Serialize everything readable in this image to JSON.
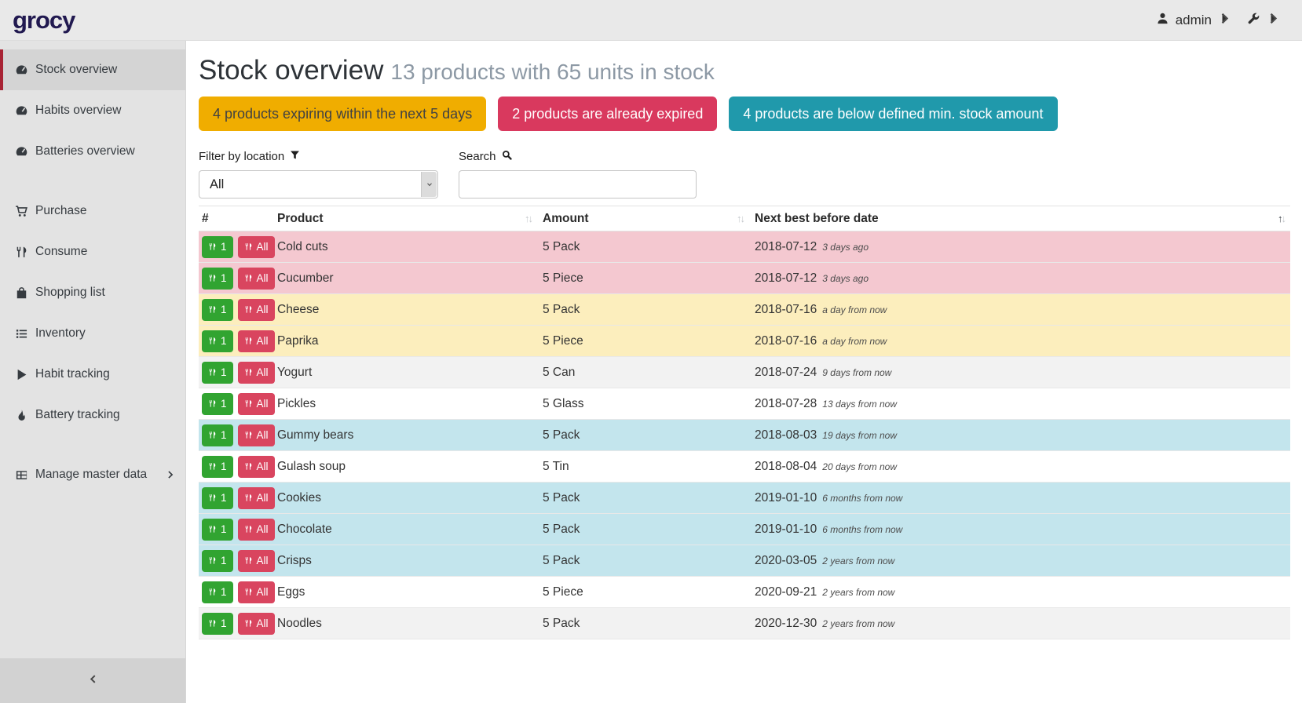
{
  "header": {
    "logo": "grocy",
    "user": "admin"
  },
  "sidebar": {
    "groups": [
      {
        "items": [
          {
            "label": "Stock overview",
            "icon": "tachometer-icon",
            "active": true
          },
          {
            "label": "Habits overview",
            "icon": "tachometer-icon"
          },
          {
            "label": "Batteries overview",
            "icon": "tachometer-icon"
          }
        ]
      },
      {
        "items": [
          {
            "label": "Purchase",
            "icon": "cart-icon"
          },
          {
            "label": "Consume",
            "icon": "utensils-icon"
          },
          {
            "label": "Shopping list",
            "icon": "shopping-bag-icon"
          },
          {
            "label": "Inventory",
            "icon": "list-icon"
          },
          {
            "label": "Habit tracking",
            "icon": "play-icon"
          },
          {
            "label": "Battery tracking",
            "icon": "fire-icon"
          }
        ]
      },
      {
        "items": [
          {
            "label": "Manage master data",
            "icon": "table-icon",
            "chevron": true
          }
        ]
      }
    ]
  },
  "page": {
    "title": "Stock overview",
    "subtitle": "13 products with 65 units in stock",
    "badges": [
      {
        "label": "4 products expiring within the next 5 days",
        "bg": "#f0ad00",
        "fg": "#424242"
      },
      {
        "label": "2 products are already expired",
        "bg": "#d9395e",
        "fg": "#ffffff"
      },
      {
        "label": "4 products are below defined min. stock amount",
        "bg": "#2099ab",
        "fg": "#ffffff"
      }
    ],
    "filter": {
      "label": "Filter by location",
      "value": "All"
    },
    "search": {
      "label": "Search",
      "value": ""
    },
    "table": {
      "columns": [
        "#",
        "Product",
        "Amount",
        "Next best before date"
      ],
      "buttons": {
        "one": "1",
        "all": "All"
      },
      "status_colors": {
        "expired": "#f4c8d0",
        "expiring": "#fceebd",
        "belowmin": "#c3e5ed"
      },
      "theme": {
        "consume_one_bg": "#31a431",
        "consume_all_bg": "#d9455f"
      },
      "rows": [
        {
          "product": "Cold cuts",
          "amount": "5 Pack",
          "date": "2018-07-12",
          "relative": "3 days ago",
          "status": "expired"
        },
        {
          "product": "Cucumber",
          "amount": "5 Piece",
          "date": "2018-07-12",
          "relative": "3 days ago",
          "status": "expired"
        },
        {
          "product": "Cheese",
          "amount": "5 Pack",
          "date": "2018-07-16",
          "relative": "a day from now",
          "status": "expiring"
        },
        {
          "product": "Paprika",
          "amount": "5 Piece",
          "date": "2018-07-16",
          "relative": "a day from now",
          "status": "expiring"
        },
        {
          "product": "Yogurt",
          "amount": "5 Can",
          "date": "2018-07-24",
          "relative": "9 days from now",
          "status": ""
        },
        {
          "product": "Pickles",
          "amount": "5 Glass",
          "date": "2018-07-28",
          "relative": "13 days from now",
          "status": ""
        },
        {
          "product": "Gummy bears",
          "amount": "5 Pack",
          "date": "2018-08-03",
          "relative": "19 days from now",
          "status": "belowmin"
        },
        {
          "product": "Gulash soup",
          "amount": "5 Tin",
          "date": "2018-08-04",
          "relative": "20 days from now",
          "status": ""
        },
        {
          "product": "Cookies",
          "amount": "5 Pack",
          "date": "2019-01-10",
          "relative": "6 months from now",
          "status": "belowmin"
        },
        {
          "product": "Chocolate",
          "amount": "5 Pack",
          "date": "2019-01-10",
          "relative": "6 months from now",
          "status": "belowmin"
        },
        {
          "product": "Crisps",
          "amount": "5 Pack",
          "date": "2020-03-05",
          "relative": "2 years from now",
          "status": "belowmin"
        },
        {
          "product": "Eggs",
          "amount": "5 Piece",
          "date": "2020-09-21",
          "relative": "2 years from now",
          "status": ""
        },
        {
          "product": "Noodles",
          "amount": "5 Pack",
          "date": "2020-12-30",
          "relative": "2 years from now",
          "status": ""
        }
      ]
    }
  }
}
